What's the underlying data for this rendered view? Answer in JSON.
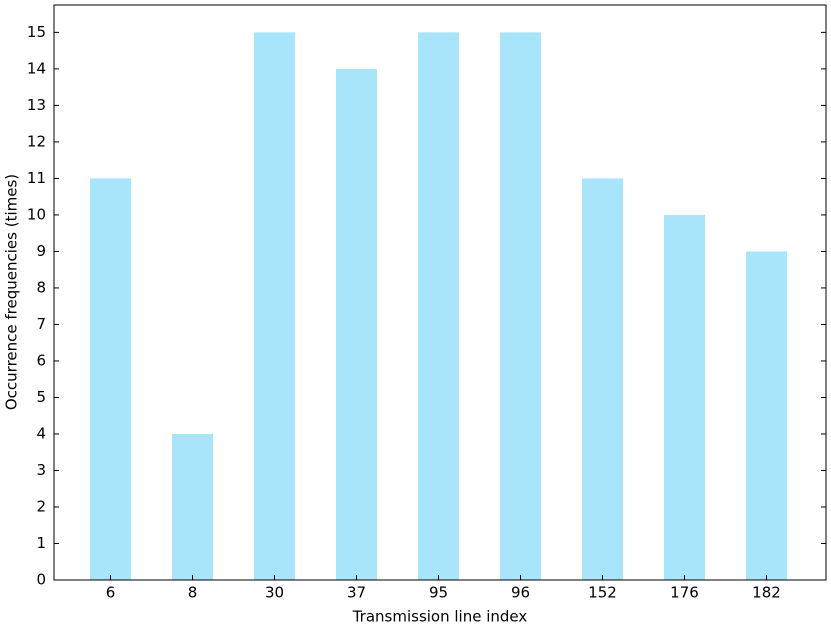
{
  "chart_data": {
    "type": "bar",
    "x_label": "Transmission line index",
    "y_label": "Occurrence frequencies (times)",
    "categories": [
      "6",
      "8",
      "30",
      "37",
      "95",
      "96",
      "152",
      "176",
      "182"
    ],
    "values": [
      11,
      4,
      15,
      14,
      15,
      15,
      11,
      10,
      9
    ],
    "color": "#a8e5fb",
    "ylim": [
      0,
      15.75
    ],
    "yticks": [
      0,
      1,
      2,
      3,
      4,
      5,
      6,
      7,
      8,
      9,
      10,
      11,
      12,
      13,
      14,
      15
    ],
    "grid": false
  }
}
